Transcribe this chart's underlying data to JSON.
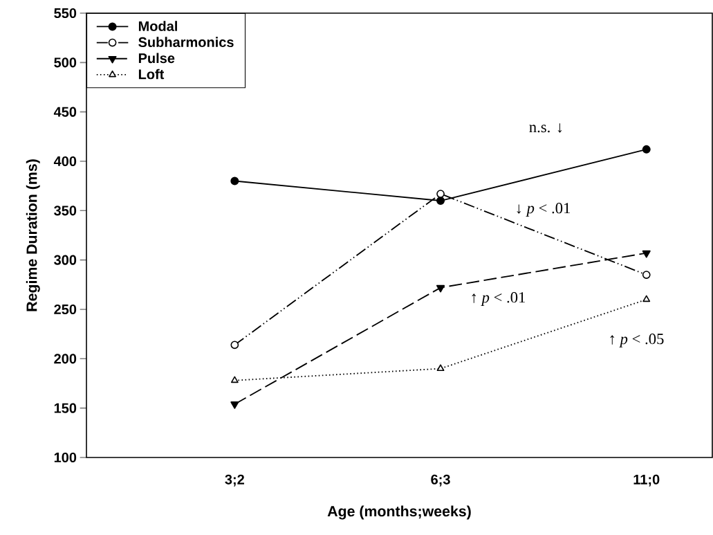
{
  "chart_data": {
    "type": "line",
    "xlabel": "Age (months;weeks)",
    "ylabel": "Regime Duration (ms)",
    "categories": [
      "3;2",
      "6;3",
      "11;0"
    ],
    "ylim": [
      100,
      550
    ],
    "yticks": [
      100,
      150,
      200,
      250,
      300,
      350,
      400,
      450,
      500,
      550
    ],
    "series": [
      {
        "name": "Modal",
        "color": "#000000",
        "marker": "circle",
        "line_style": "solid",
        "values": [
          380,
          360,
          412
        ]
      },
      {
        "name": "Subharmonics",
        "color": "#000000",
        "marker": "circle",
        "line_style": "dashdotdot",
        "values": [
          214,
          367,
          285
        ]
      },
      {
        "name": "Pulse",
        "color": "#000000",
        "marker": "triangle",
        "line_style": "dashed",
        "values": [
          154,
          272,
          307
        ]
      },
      {
        "name": "Loft",
        "color": "#000000",
        "marker": "triangle",
        "line_style": "dotted",
        "values": [
          178,
          190,
          260
        ]
      }
    ],
    "legend": "top left",
    "annotations": [
      "n.s. ↓",
      "↓ *p* < .01",
      "↑ *p* < .01",
      "↑ *p* < .05"
    ]
  }
}
